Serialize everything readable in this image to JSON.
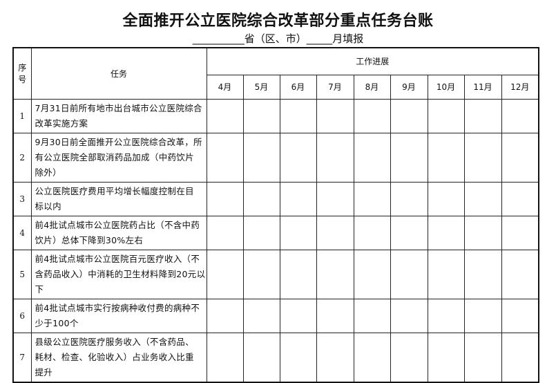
{
  "title": "全面推开公立医院综合改革部分重点任务台账",
  "subtitle": "__________省（区、市）_____月填报",
  "headers": {
    "seq_line1": "序",
    "seq_line2": "号",
    "task": "任务",
    "progress": "工作进展"
  },
  "months": [
    "4月",
    "5月",
    "6月",
    "7月",
    "8月",
    "9月",
    "10月",
    "11月",
    "12月"
  ],
  "rows": [
    {
      "seq": "1",
      "lines": [
        "7月31日前所有地市出台城市公立医院综合",
        "改革实施方案"
      ]
    },
    {
      "seq": "2",
      "lines": [
        "9月30日前全面推开公立医院综合改革，所",
        "有公立医院全部取消药品加成（中药饮片",
        "除外）"
      ]
    },
    {
      "seq": "3",
      "lines": [
        "公立医院医疗费用平均增长幅度控制在目",
        "标以内"
      ]
    },
    {
      "seq": "4",
      "lines": [
        "前4批试点城市公立医院药占比（不含中药",
        "饮片）总体下降到30%左右"
      ]
    },
    {
      "seq": "5",
      "lines": [
        "前4批试点城市公立医院百元医疗收入（不",
        "含药品收入）中消耗的卫生材料降到20元以",
        "下"
      ]
    },
    {
      "seq": "6",
      "lines": [
        "前4批试点城市实行按病种收付费的病种不",
        "少于100个"
      ]
    },
    {
      "seq": "7",
      "lines": [
        "县级公立医院医疗服务收入（不含药品、",
        "耗材、检查、化验收入）占业务收入比重",
        "提升"
      ]
    }
  ]
}
